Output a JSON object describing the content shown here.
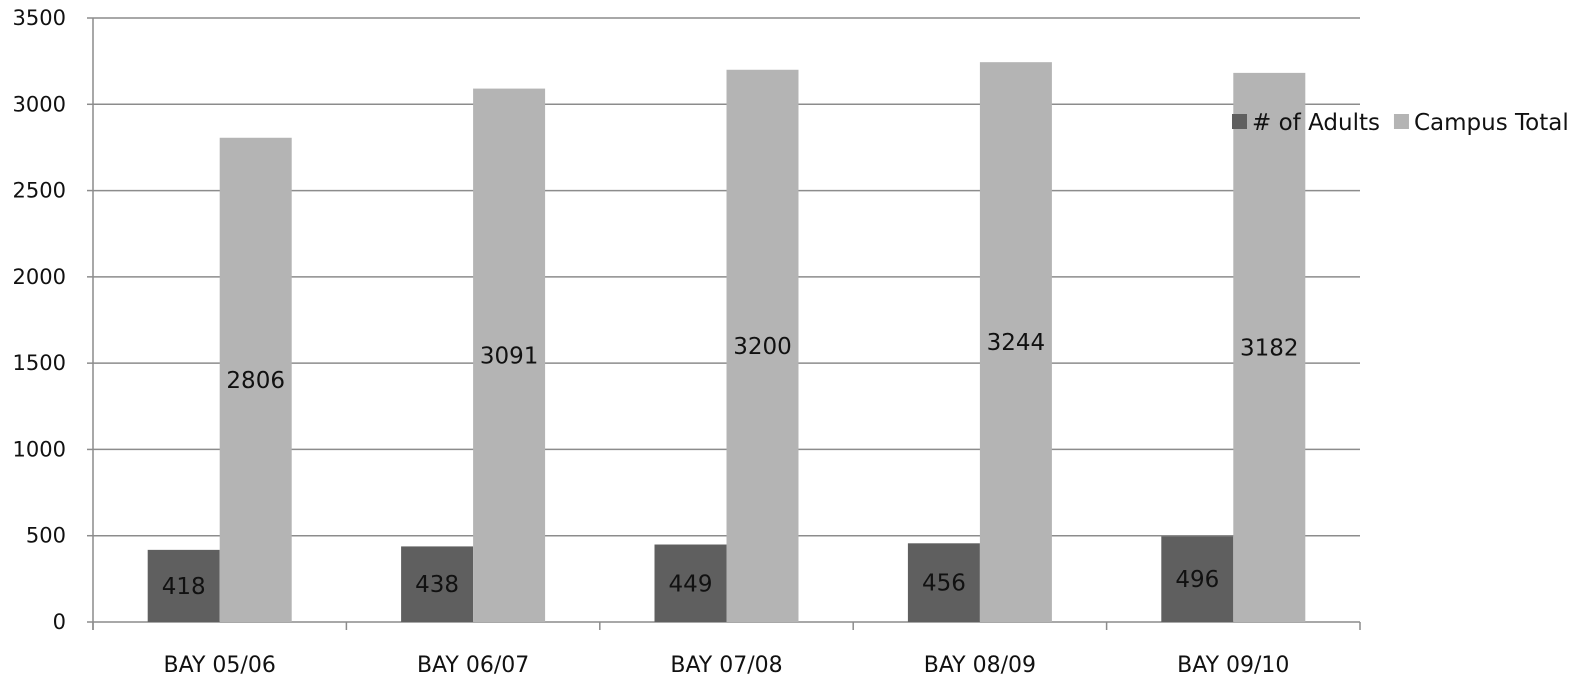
{
  "chart_data": {
    "type": "bar",
    "title": "",
    "xlabel": "",
    "ylabel": "",
    "ylim": [
      0,
      3500
    ],
    "yticks": [
      0,
      500,
      1000,
      1500,
      2000,
      2500,
      3000,
      3500
    ],
    "categories": [
      "BAY 05/06",
      "BAY 06/07",
      "BAY 07/08",
      "BAY 08/09",
      "BAY 09/10"
    ],
    "series": [
      {
        "name": "# of Adults",
        "color": "#5f5f5f",
        "values": [
          418,
          438,
          449,
          456,
          496
        ]
      },
      {
        "name": "Campus Total",
        "color": "#b4b4b4",
        "values": [
          2806,
          3091,
          3200,
          3244,
          3182
        ]
      }
    ],
    "grid": true,
    "legend": "right",
    "data_labels": true
  }
}
